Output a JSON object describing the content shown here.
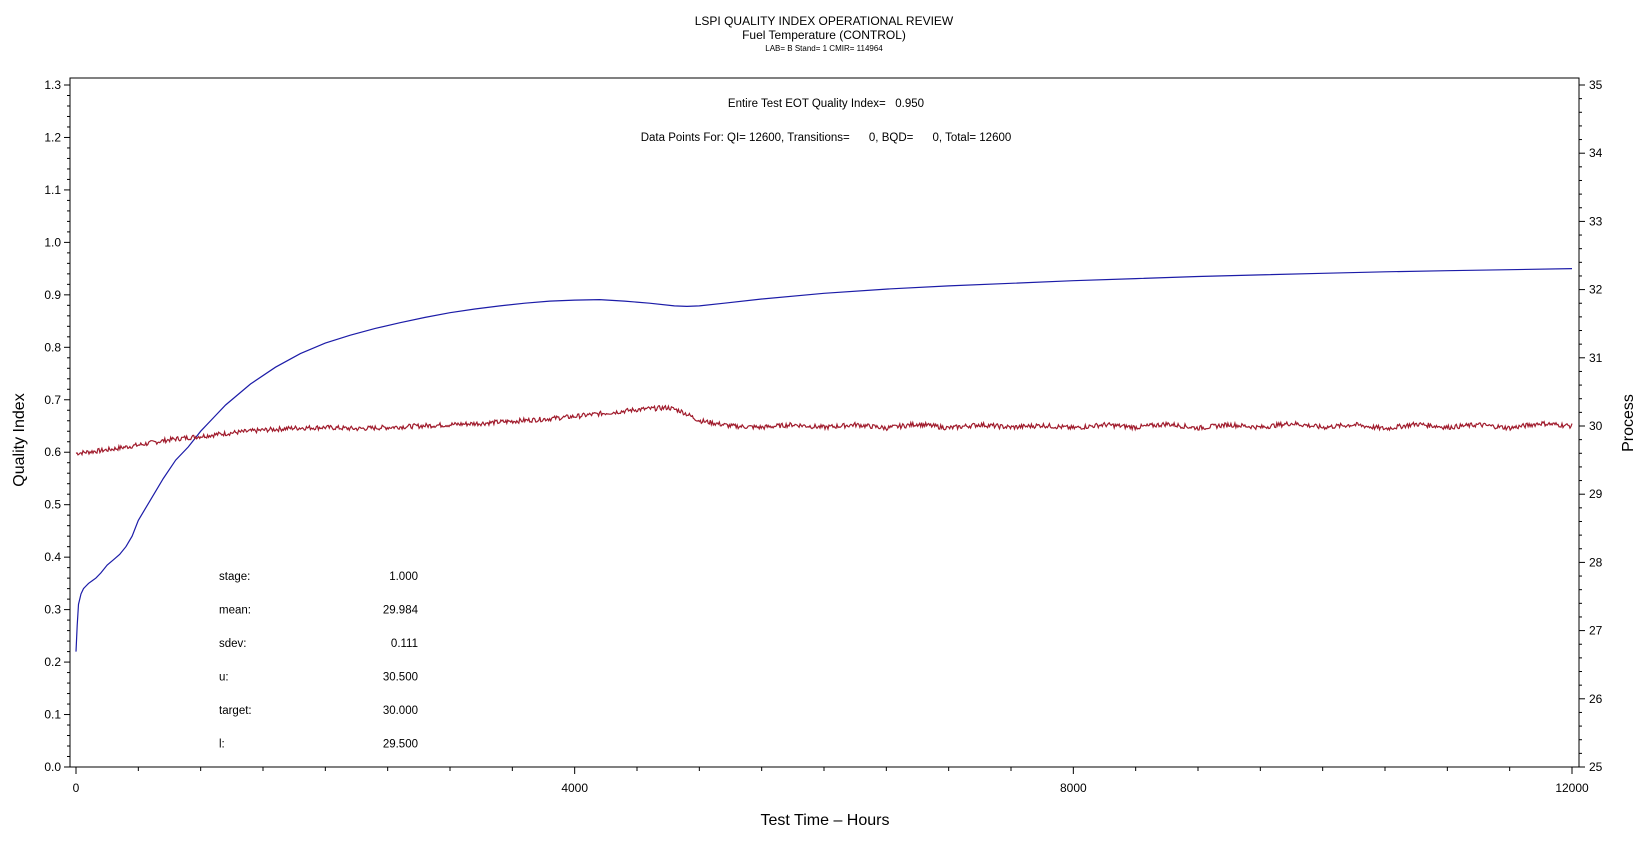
{
  "chart_data": {
    "type": "line",
    "title": "LSPI QUALITY INDEX OPERATIONAL REVIEW",
    "subtitle": "Fuel Temperature (CONTROL)",
    "subtitle2": "LAB= B Stand= 1 CMIR= 114964",
    "xlabel": "Test Time – Hours",
    "ylabel": "Quality Index",
    "y2label": "Process",
    "xlim": [
      0,
      12000
    ],
    "ylim": [
      0.0,
      1.3
    ],
    "y2lim": [
      25,
      35
    ],
    "x_ticks": [
      0,
      4000,
      8000,
      12000
    ],
    "y_ticks": [
      0.0,
      0.1,
      0.2,
      0.3,
      0.4,
      0.5,
      0.6,
      0.7,
      0.8,
      0.9,
      1.0,
      1.1,
      1.2,
      1.3
    ],
    "y_tick_labels": [
      "0.0",
      "0.1",
      "0.2",
      "0.3",
      "0.4",
      "0.5",
      "0.6",
      "0.7",
      "0.8",
      "0.9",
      "1.0",
      "1.1",
      "1.2",
      "1.3"
    ],
    "y2_ticks": [
      25,
      26,
      27,
      28,
      29,
      30,
      31,
      32,
      33,
      34,
      35
    ],
    "annotations": {
      "eot_line": "Entire Test EOT Quality Index=   0.950",
      "points_line": "Data Points For: QI= 12600, Transitions=      0, BQD=      0, Total= 12600"
    },
    "stats": [
      {
        "label": "stage:",
        "value": "1.000"
      },
      {
        "label": "mean:",
        "value": "29.984"
      },
      {
        "label": "sdev:",
        "value": "0.111"
      },
      {
        "label": "u:",
        "value": "30.500"
      },
      {
        "label": "target:",
        "value": "30.000"
      },
      {
        "label": "l:",
        "value": "29.500"
      }
    ],
    "series": [
      {
        "axis": "left",
        "color": "#1c1ca8",
        "x": [
          0,
          10,
          20,
          40,
          60,
          80,
          100,
          130,
          160,
          200,
          250,
          300,
          350,
          400,
          450,
          500,
          600,
          700,
          800,
          900,
          1000,
          1100,
          1200,
          1400,
          1600,
          1800,
          2000,
          2200,
          2400,
          2600,
          2800,
          3000,
          3200,
          3400,
          3600,
          3800,
          4000,
          4200,
          4400,
          4600,
          4800,
          4900,
          5000,
          5200,
          5500,
          6000,
          6500,
          7000,
          7500,
          8000,
          8500,
          9000,
          9500,
          10000,
          10500,
          11000,
          11500,
          12000
        ],
        "y": [
          0.22,
          0.27,
          0.31,
          0.33,
          0.34,
          0.345,
          0.35,
          0.355,
          0.36,
          0.37,
          0.385,
          0.395,
          0.405,
          0.42,
          0.44,
          0.47,
          0.51,
          0.55,
          0.585,
          0.61,
          0.64,
          0.665,
          0.69,
          0.73,
          0.762,
          0.788,
          0.808,
          0.823,
          0.836,
          0.847,
          0.857,
          0.866,
          0.873,
          0.879,
          0.884,
          0.888,
          0.89,
          0.891,
          0.888,
          0.884,
          0.879,
          0.878,
          0.879,
          0.884,
          0.892,
          0.903,
          0.911,
          0.917,
          0.922,
          0.927,
          0.931,
          0.935,
          0.938,
          0.941,
          0.944,
          0.946,
          0.948,
          0.95
        ]
      },
      {
        "axis": "right",
        "color": "#a01b2c",
        "x": [
          0,
          250,
          500,
          750,
          1000,
          1250,
          1500,
          1750,
          2000,
          2250,
          2500,
          2750,
          3000,
          3250,
          3500,
          3750,
          4000,
          4250,
          4500,
          4750,
          4850,
          5000,
          5250,
          5500,
          5750,
          6000,
          6250,
          6500,
          6750,
          7000,
          7250,
          7500,
          7750,
          8000,
          8250,
          8500,
          8750,
          9000,
          9250,
          9500,
          9750,
          10000,
          10250,
          10500,
          10750,
          11000,
          11250,
          11500,
          11750,
          12000
        ],
        "y": [
          29.6,
          29.65,
          29.72,
          29.8,
          29.85,
          29.9,
          29.94,
          29.97,
          29.98,
          29.96,
          29.98,
          30.0,
          30.02,
          30.04,
          30.07,
          30.1,
          30.14,
          30.19,
          30.24,
          30.27,
          30.22,
          30.08,
          30.0,
          29.98,
          30.02,
          29.98,
          30.02,
          29.97,
          30.03,
          29.97,
          30.02,
          29.98,
          30.01,
          29.97,
          30.02,
          29.98,
          30.03,
          29.97,
          30.02,
          29.98,
          30.04,
          29.98,
          30.02,
          29.96,
          30.03,
          29.98,
          30.02,
          29.97,
          30.04,
          30.0
        ]
      }
    ]
  }
}
